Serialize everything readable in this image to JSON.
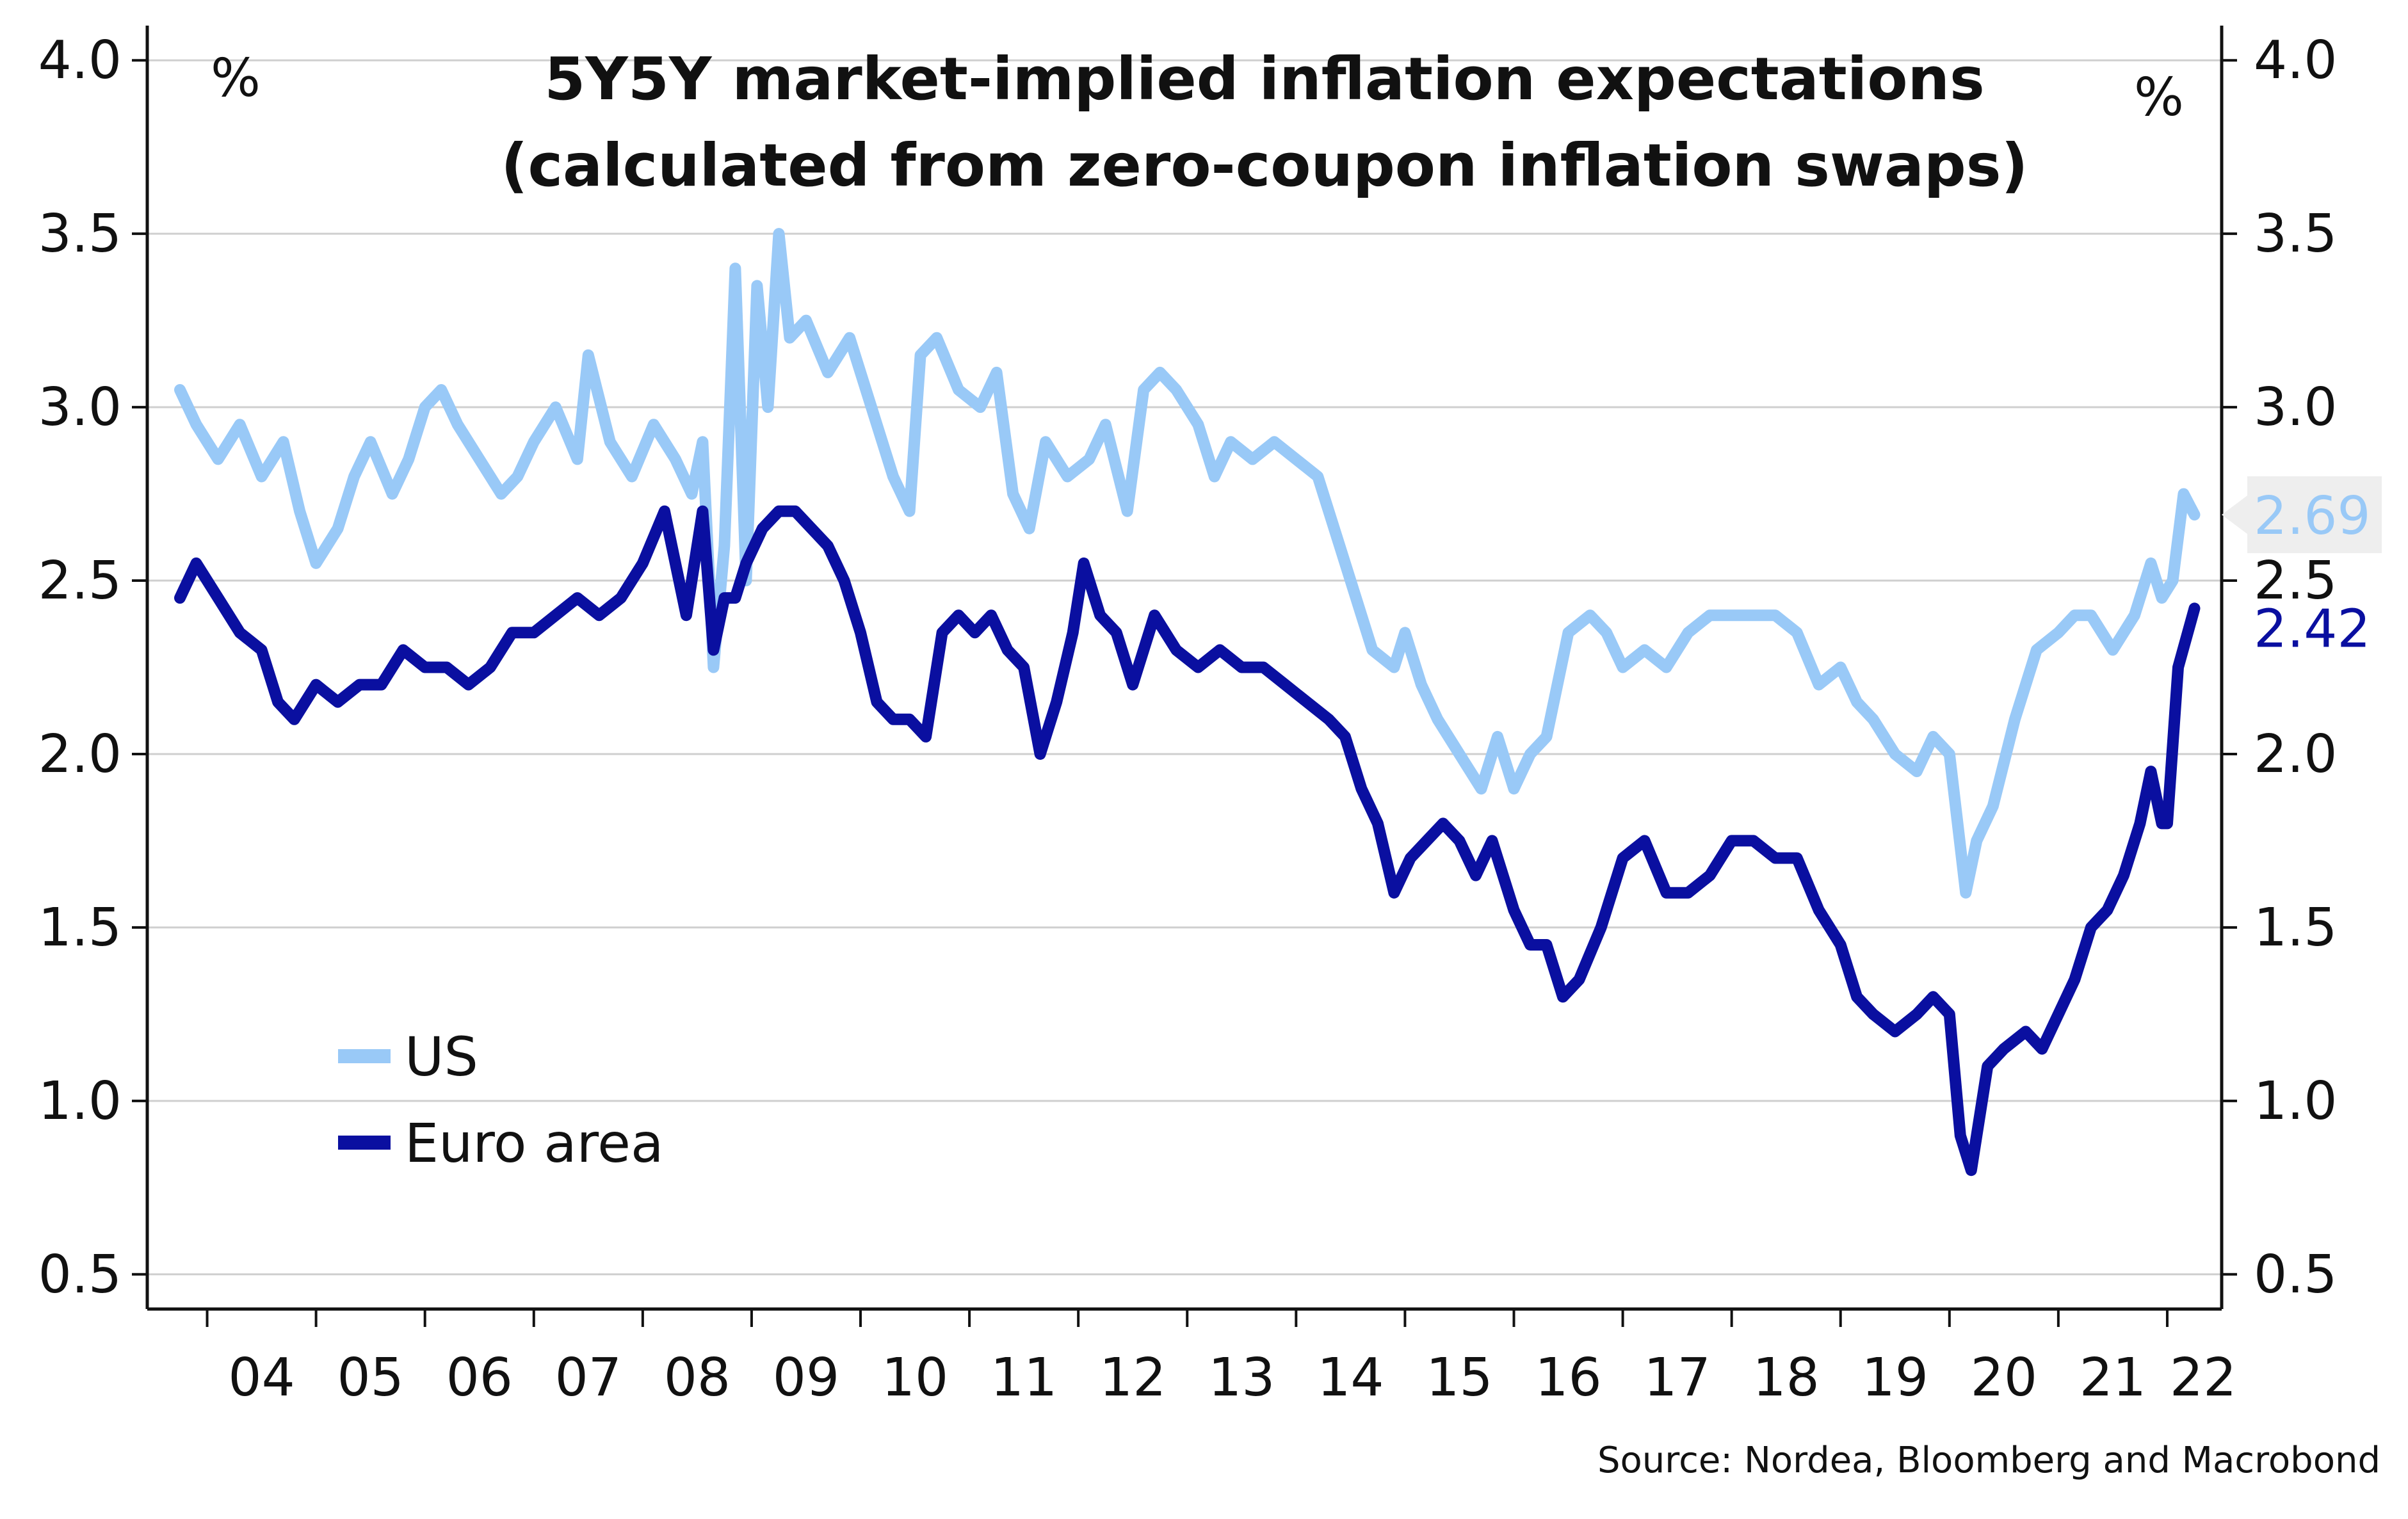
{
  "colors": {
    "us": "#99c9f7",
    "euro_area": "#0a0fa0",
    "grid": "#cfcfcf",
    "axis": "#111111",
    "end_label_bg": "#eeeeee"
  },
  "chart_data": {
    "type": "line",
    "title_line1": "5Y5Y market-implied inflation expectations",
    "title_line2": "(calculated from zero-coupon inflation swaps)",
    "left_unit": "%",
    "right_unit": "%",
    "source": "Source: Nordea, Bloomberg and Macrobond",
    "ylim": [
      0.4,
      4.1
    ],
    "yticks": [
      "0.5",
      "1.0",
      "1.5",
      "2.0",
      "2.5",
      "3.0",
      "3.5",
      "4.0"
    ],
    "xlim": [
      2003.45,
      2022.5
    ],
    "xticks": [
      "04",
      "05",
      "06",
      "07",
      "08",
      "09",
      "10",
      "11",
      "12",
      "13",
      "14",
      "15",
      "16",
      "17",
      "18",
      "19",
      "20",
      "21",
      "22"
    ],
    "grid": true,
    "legend_position": "bottom-left",
    "end_labels": {
      "us": "2.69",
      "euro_area": "2.42"
    },
    "series": [
      {
        "name": "US",
        "color_key": "us",
        "x": [
          2003.75,
          2003.9,
          2004.1,
          2004.3,
          2004.5,
          2004.7,
          2004.85,
          2005.0,
          2005.2,
          2005.35,
          2005.5,
          2005.7,
          2005.85,
          2006.0,
          2006.15,
          2006.3,
          2006.5,
          2006.7,
          2006.85,
          2007.0,
          2007.2,
          2007.4,
          2007.5,
          2007.7,
          2007.9,
          2008.1,
          2008.3,
          2008.45,
          2008.55,
          2008.65,
          2008.75,
          2008.85,
          2008.95,
          2009.05,
          2009.15,
          2009.25,
          2009.35,
          2009.5,
          2009.7,
          2009.9,
          2010.1,
          2010.3,
          2010.45,
          2010.55,
          2010.7,
          2010.9,
          2011.1,
          2011.25,
          2011.4,
          2011.55,
          2011.7,
          2011.9,
          2012.1,
          2012.25,
          2012.45,
          2012.6,
          2012.75,
          2012.9,
          2013.1,
          2013.25,
          2013.4,
          2013.6,
          2013.8,
          2014.0,
          2014.2,
          2014.4,
          2014.55,
          2014.7,
          2014.9,
          2015.0,
          2015.15,
          2015.3,
          2015.5,
          2015.7,
          2015.85,
          2016.0,
          2016.15,
          2016.3,
          2016.5,
          2016.7,
          2016.85,
          2017.0,
          2017.2,
          2017.4,
          2017.6,
          2017.8,
          2018.0,
          2018.2,
          2018.4,
          2018.6,
          2018.8,
          2019.0,
          2019.15,
          2019.3,
          2019.5,
          2019.7,
          2019.85,
          2020.0,
          2020.15,
          2020.25,
          2020.4,
          2020.6,
          2020.8,
          2021.0,
          2021.15,
          2021.3,
          2021.5,
          2021.7,
          2021.85,
          2021.95,
          2022.05,
          2022.15,
          2022.25
        ],
        "y": [
          3.05,
          2.95,
          2.85,
          2.95,
          2.8,
          2.9,
          2.7,
          2.55,
          2.65,
          2.8,
          2.9,
          2.75,
          2.85,
          3.0,
          3.05,
          2.95,
          2.85,
          2.75,
          2.8,
          2.9,
          3.0,
          2.85,
          3.15,
          2.9,
          2.8,
          2.95,
          2.85,
          2.75,
          2.9,
          2.25,
          2.6,
          3.4,
          2.5,
          3.35,
          3.0,
          3.5,
          3.2,
          3.25,
          3.1,
          3.2,
          3.0,
          2.8,
          2.7,
          3.15,
          3.2,
          3.05,
          3.0,
          3.1,
          2.75,
          2.65,
          2.9,
          2.8,
          2.85,
          2.95,
          2.7,
          3.05,
          3.1,
          3.05,
          2.95,
          2.8,
          2.9,
          2.85,
          2.9,
          2.85,
          2.8,
          2.6,
          2.45,
          2.3,
          2.25,
          2.35,
          2.2,
          2.1,
          2.0,
          1.9,
          2.05,
          1.9,
          2.0,
          2.05,
          2.35,
          2.4,
          2.35,
          2.25,
          2.3,
          2.25,
          2.35,
          2.4,
          2.4,
          2.4,
          2.4,
          2.35,
          2.2,
          2.25,
          2.15,
          2.1,
          2.0,
          1.95,
          2.05,
          2.0,
          1.6,
          1.75,
          1.85,
          2.1,
          2.3,
          2.35,
          2.4,
          2.4,
          2.3,
          2.4,
          2.55,
          2.45,
          2.5,
          2.75,
          2.69
        ]
      },
      {
        "name": "Euro area",
        "color_key": "euro_area",
        "x": [
          2003.75,
          2003.9,
          2004.1,
          2004.3,
          2004.5,
          2004.65,
          2004.8,
          2005.0,
          2005.2,
          2005.4,
          2005.6,
          2005.8,
          2006.0,
          2006.2,
          2006.4,
          2006.6,
          2006.8,
          2007.0,
          2007.2,
          2007.4,
          2007.6,
          2007.8,
          2008.0,
          2008.2,
          2008.4,
          2008.55,
          2008.65,
          2008.75,
          2008.85,
          2008.95,
          2009.1,
          2009.25,
          2009.4,
          2009.55,
          2009.7,
          2009.85,
          2010.0,
          2010.15,
          2010.3,
          2010.45,
          2010.6,
          2010.75,
          2010.9,
          2011.05,
          2011.2,
          2011.35,
          2011.5,
          2011.65,
          2011.8,
          2011.95,
          2012.05,
          2012.2,
          2012.35,
          2012.5,
          2012.7,
          2012.9,
          2013.1,
          2013.3,
          2013.5,
          2013.7,
          2013.9,
          2014.1,
          2014.3,
          2014.45,
          2014.6,
          2014.75,
          2014.9,
          2015.05,
          2015.2,
          2015.35,
          2015.5,
          2015.65,
          2015.8,
          2016.0,
          2016.15,
          2016.3,
          2016.45,
          2016.6,
          2016.8,
          2017.0,
          2017.2,
          2017.4,
          2017.6,
          2017.8,
          2018.0,
          2018.2,
          2018.4,
          2018.6,
          2018.8,
          2019.0,
          2019.15,
          2019.3,
          2019.5,
          2019.7,
          2019.85,
          2020.0,
          2020.1,
          2020.2,
          2020.35,
          2020.5,
          2020.7,
          2020.85,
          2021.0,
          2021.15,
          2021.3,
          2021.45,
          2021.6,
          2021.75,
          2021.85,
          2021.95,
          2022.0,
          2022.1,
          2022.25
        ],
        "y": [
          2.45,
          2.55,
          2.45,
          2.35,
          2.3,
          2.15,
          2.1,
          2.2,
          2.15,
          2.2,
          2.2,
          2.3,
          2.25,
          2.25,
          2.2,
          2.25,
          2.35,
          2.35,
          2.4,
          2.45,
          2.4,
          2.45,
          2.55,
          2.7,
          2.4,
          2.7,
          2.3,
          2.45,
          2.45,
          2.55,
          2.65,
          2.7,
          2.7,
          2.65,
          2.6,
          2.5,
          2.35,
          2.15,
          2.1,
          2.1,
          2.05,
          2.35,
          2.4,
          2.35,
          2.4,
          2.3,
          2.25,
          2.0,
          2.15,
          2.35,
          2.55,
          2.4,
          2.35,
          2.2,
          2.4,
          2.3,
          2.25,
          2.3,
          2.25,
          2.25,
          2.2,
          2.15,
          2.1,
          2.05,
          1.9,
          1.8,
          1.6,
          1.7,
          1.75,
          1.8,
          1.75,
          1.65,
          1.75,
          1.55,
          1.45,
          1.45,
          1.3,
          1.35,
          1.5,
          1.7,
          1.75,
          1.6,
          1.6,
          1.65,
          1.75,
          1.75,
          1.7,
          1.7,
          1.55,
          1.45,
          1.3,
          1.25,
          1.2,
          1.25,
          1.3,
          1.25,
          0.9,
          0.8,
          1.1,
          1.15,
          1.2,
          1.15,
          1.25,
          1.35,
          1.5,
          1.55,
          1.65,
          1.8,
          1.95,
          1.8,
          1.8,
          2.25,
          2.42
        ]
      }
    ]
  }
}
